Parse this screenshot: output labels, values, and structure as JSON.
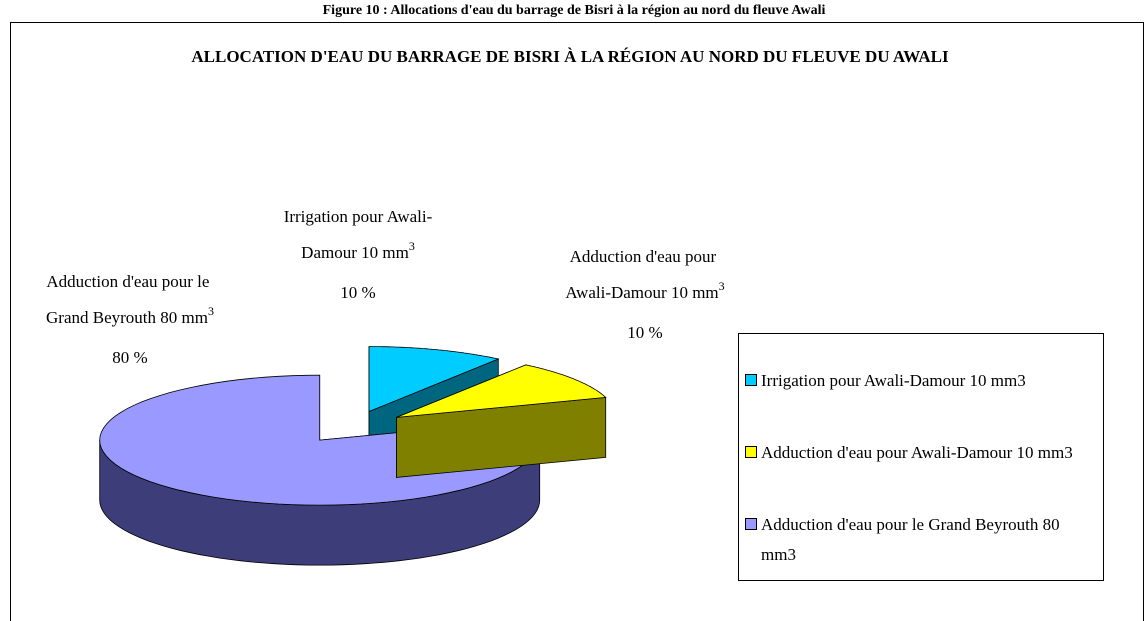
{
  "caption": "Figure 10 : Allocations d'eau du barrage de Bisri à la région au nord du fleuve Awali",
  "chart_data": {
    "type": "pie",
    "title": "ALLOCATION D'EAU DU BARRAGE DE BISRI À LA RÉGION AU NORD DU FLEUVE DU AWALI",
    "categories": [
      "Irrigation pour Awali-Damour 10 mm3",
      "Adduction d'eau pour Awali-Damour 10 mm3",
      "Adduction d'eau pour le Grand Beyrouth 80 mm3"
    ],
    "values": [
      10,
      10,
      80
    ],
    "value_labels": [
      "10 %",
      "10 %",
      "80 %"
    ],
    "colors": [
      "#00ccff",
      "#ffff00",
      "#9999ff"
    ],
    "side_colors": [
      "#006680",
      "#808000",
      "#3d3d7a"
    ],
    "legend": "right"
  }
}
